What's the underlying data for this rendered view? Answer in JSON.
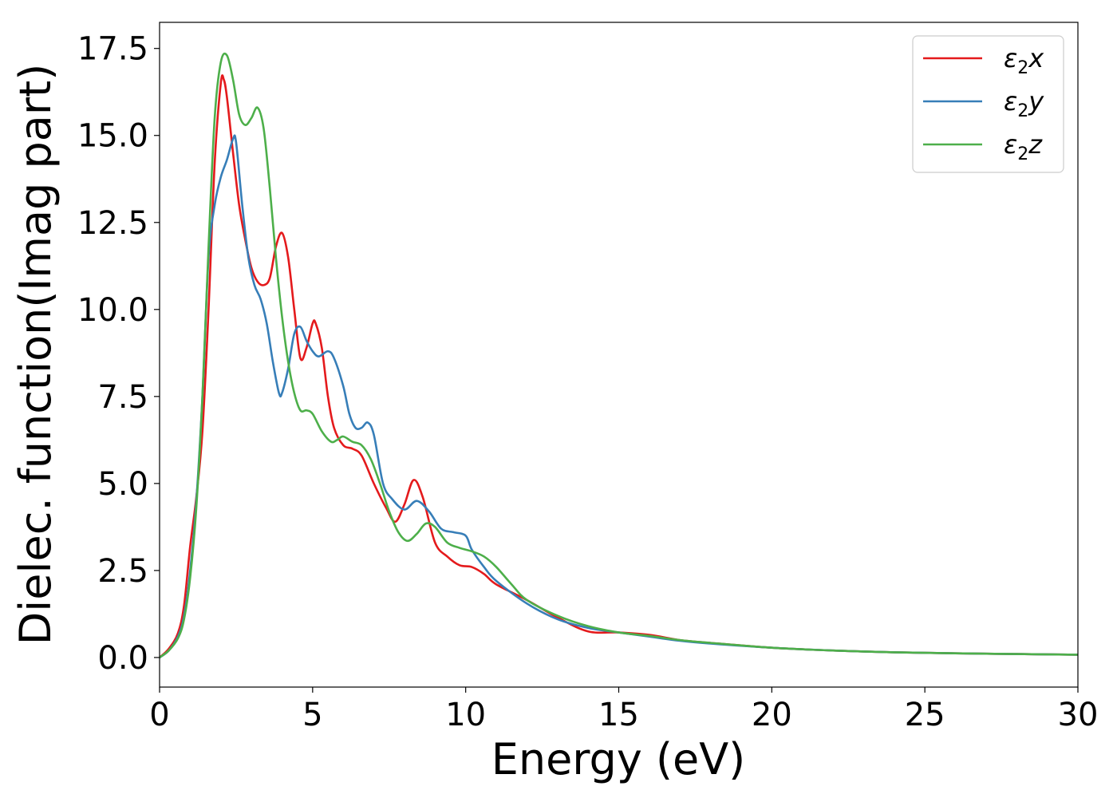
{
  "chart_data": {
    "type": "line",
    "title": "",
    "xlabel": "Energy (eV)",
    "ylabel": "Dielec. function(Imag part)",
    "xlim": [
      0,
      30
    ],
    "ylim": [
      -0.85,
      18.25
    ],
    "xticks": [
      0,
      5,
      10,
      15,
      20,
      25,
      30
    ],
    "xtick_labels": [
      "0",
      "5",
      "10",
      "15",
      "20",
      "25",
      "30"
    ],
    "yticks": [
      0,
      2.5,
      5,
      7.5,
      10,
      12.5,
      15,
      17.5
    ],
    "ytick_labels": [
      "0.0",
      "2.5",
      "5.0",
      "7.5",
      "10.0",
      "12.5",
      "15.0",
      "17.5"
    ],
    "grid": false,
    "legend_position": "top-right",
    "series": [
      {
        "name": "ε2x",
        "legend_main": "ε",
        "legend_sub": "2",
        "legend_var": "x",
        "color": "#e41a1c",
        "x": [
          0,
          0.3,
          0.6,
          0.8,
          1.0,
          1.2,
          1.4,
          1.6,
          1.8,
          2.0,
          2.1,
          2.2,
          2.4,
          2.6,
          2.8,
          3.0,
          3.2,
          3.4,
          3.6,
          3.8,
          4.0,
          4.2,
          4.4,
          4.6,
          4.8,
          5.0,
          5.1,
          5.3,
          5.5,
          5.7,
          6.0,
          6.3,
          6.6,
          7.0,
          7.4,
          7.7,
          8.0,
          8.3,
          8.6,
          9.0,
          9.4,
          9.8,
          10.2,
          10.6,
          11.0,
          12.0,
          13.0,
          14.0,
          15.0,
          16.0,
          17.0,
          18.0,
          20.0,
          22.0,
          24.0,
          26.0,
          28.0,
          30.0
        ],
        "y": [
          0.0,
          0.25,
          0.7,
          1.5,
          3.2,
          4.6,
          6.5,
          10.0,
          14.2,
          16.5,
          16.6,
          16.1,
          14.5,
          13.0,
          12.0,
          11.2,
          10.8,
          10.7,
          10.9,
          11.8,
          12.2,
          11.5,
          10.0,
          8.6,
          8.9,
          9.6,
          9.6,
          8.9,
          7.5,
          6.6,
          6.1,
          6.0,
          5.8,
          5.0,
          4.3,
          3.9,
          4.4,
          5.1,
          4.6,
          3.3,
          2.9,
          2.65,
          2.6,
          2.4,
          2.1,
          1.65,
          1.15,
          0.75,
          0.72,
          0.65,
          0.5,
          0.42,
          0.28,
          0.2,
          0.15,
          0.12,
          0.1,
          0.08
        ]
      },
      {
        "name": "ε2y",
        "legend_main": "ε",
        "legend_sub": "2",
        "legend_var": "y",
        "color": "#377eb8",
        "x": [
          0,
          0.3,
          0.6,
          0.8,
          1.0,
          1.2,
          1.4,
          1.6,
          1.8,
          2.0,
          2.2,
          2.4,
          2.5,
          2.7,
          2.9,
          3.1,
          3.3,
          3.5,
          3.7,
          3.9,
          4.0,
          4.2,
          4.4,
          4.6,
          4.8,
          5.0,
          5.2,
          5.5,
          5.7,
          6.0,
          6.2,
          6.4,
          6.6,
          6.8,
          7.0,
          7.3,
          7.6,
          8.0,
          8.4,
          8.8,
          9.2,
          9.6,
          10.0,
          10.2,
          10.6,
          11.0,
          12.0,
          13.0,
          14.0,
          15.0,
          16.0,
          17.0,
          18.0,
          20.0,
          22.0,
          24.0,
          26.0,
          28.0,
          30.0
        ],
        "y": [
          0.0,
          0.2,
          0.6,
          1.2,
          2.5,
          4.5,
          7.5,
          11.5,
          13.0,
          13.8,
          14.3,
          14.9,
          14.8,
          13.0,
          11.5,
          10.7,
          10.3,
          9.6,
          8.5,
          7.6,
          7.6,
          8.3,
          9.3,
          9.5,
          9.1,
          8.8,
          8.65,
          8.8,
          8.6,
          7.8,
          7.0,
          6.6,
          6.6,
          6.75,
          6.4,
          5.0,
          4.55,
          4.25,
          4.5,
          4.2,
          3.7,
          3.6,
          3.5,
          3.1,
          2.6,
          2.2,
          1.55,
          1.1,
          0.85,
          0.72,
          0.6,
          0.48,
          0.4,
          0.28,
          0.2,
          0.15,
          0.12,
          0.1,
          0.08
        ]
      },
      {
        "name": "ε2z",
        "legend_main": "ε",
        "legend_sub": "2",
        "legend_var": "z",
        "color": "#4daf4a",
        "x": [
          0,
          0.3,
          0.6,
          0.8,
          1.0,
          1.2,
          1.4,
          1.6,
          1.8,
          2.0,
          2.2,
          2.4,
          2.6,
          2.8,
          3.0,
          3.2,
          3.4,
          3.6,
          3.8,
          4.0,
          4.2,
          4.4,
          4.6,
          4.8,
          5.0,
          5.3,
          5.6,
          5.8,
          6.0,
          6.3,
          6.6,
          6.9,
          7.2,
          7.5,
          7.8,
          8.1,
          8.4,
          8.7,
          9.0,
          9.4,
          9.8,
          10.2,
          10.6,
          11.0,
          11.5,
          12.0,
          13.0,
          14.0,
          15.0,
          16.0,
          17.0,
          18.0,
          20.0,
          22.0,
          24.0,
          26.0,
          28.0,
          30.0
        ],
        "y": [
          0.0,
          0.2,
          0.55,
          1.1,
          2.3,
          4.3,
          7.5,
          11.8,
          15.5,
          17.1,
          17.3,
          16.6,
          15.6,
          15.3,
          15.5,
          15.8,
          15.2,
          13.5,
          11.5,
          9.8,
          8.5,
          7.6,
          7.1,
          7.1,
          7.0,
          6.5,
          6.2,
          6.25,
          6.35,
          6.2,
          6.1,
          5.7,
          5.0,
          4.2,
          3.6,
          3.35,
          3.55,
          3.85,
          3.75,
          3.3,
          3.15,
          3.05,
          2.9,
          2.6,
          2.1,
          1.65,
          1.2,
          0.9,
          0.72,
          0.62,
          0.5,
          0.42,
          0.28,
          0.2,
          0.15,
          0.12,
          0.1,
          0.08
        ]
      }
    ]
  }
}
